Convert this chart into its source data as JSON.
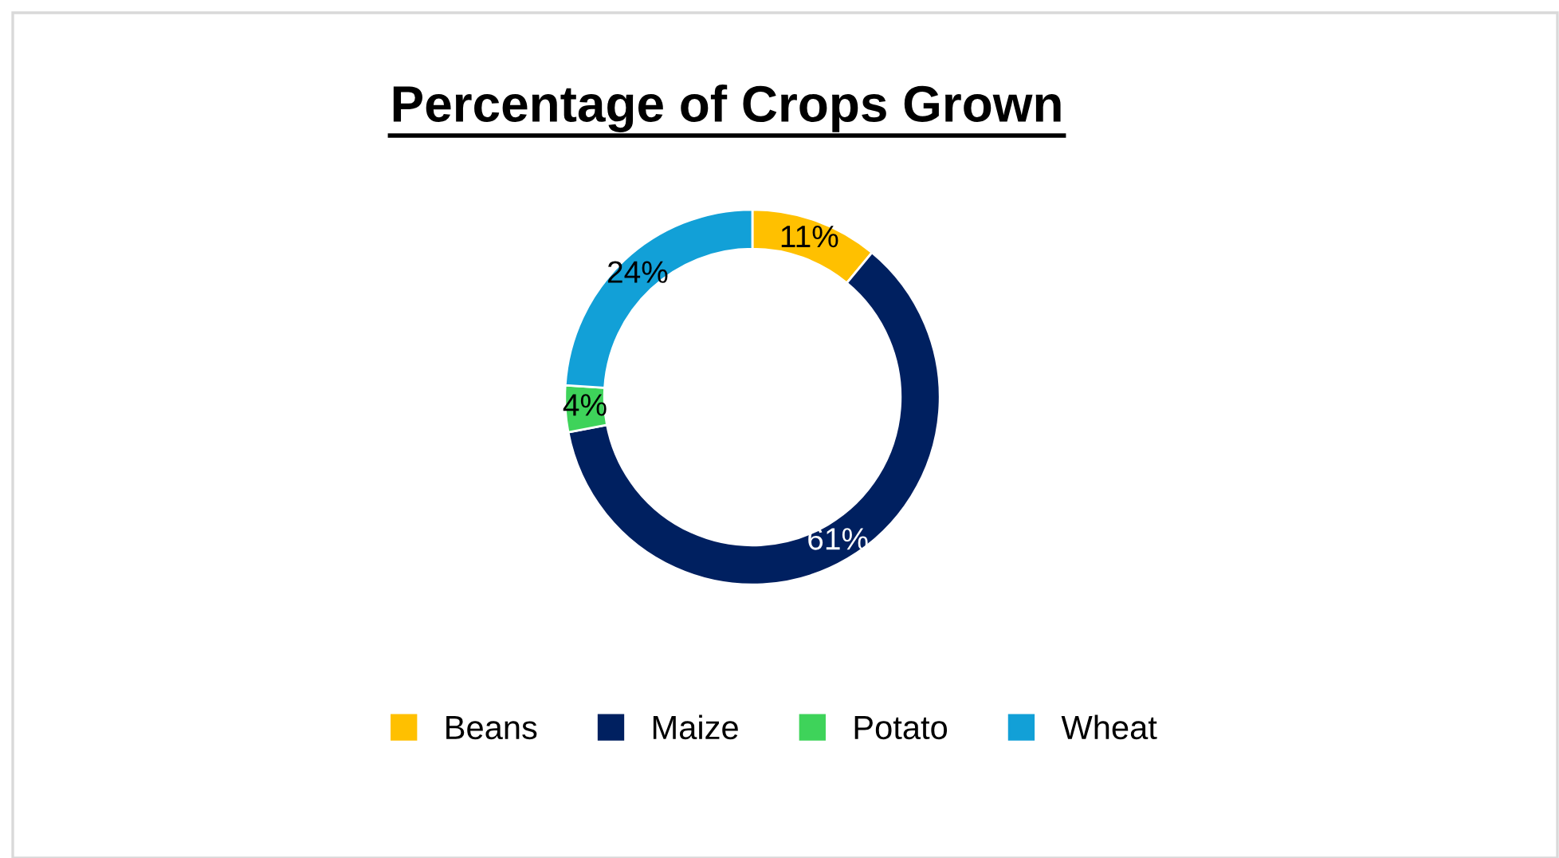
{
  "chart_data": {
    "type": "donut",
    "title": "Percentage of Crops Grown",
    "categories": [
      "Beans",
      "Maize",
      "Potato",
      "Wheat"
    ],
    "values": [
      11,
      61,
      4,
      24
    ],
    "colors": [
      "#ffc000",
      "#002060",
      "#3ed35a",
      "#12a0d7"
    ],
    "value_labels": [
      "11%",
      "61%",
      "4%",
      "24%"
    ],
    "legend": "bottom"
  }
}
